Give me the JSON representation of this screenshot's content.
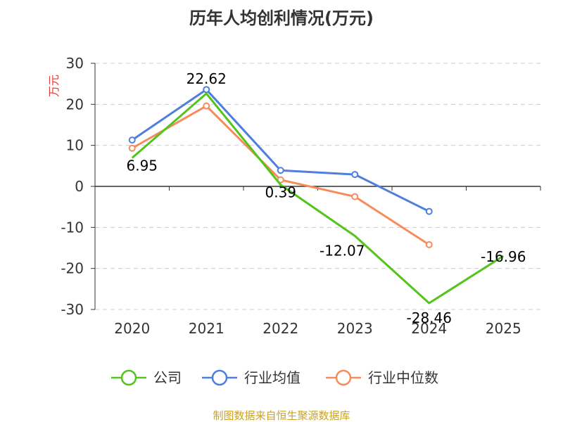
{
  "chart_data": {
    "type": "line",
    "title": "历年人均创利情况(万元)",
    "ylabel": "万元",
    "xlabel": "",
    "categories": [
      "2020",
      "2021",
      "2022",
      "2023",
      "2024",
      "2025"
    ],
    "ylim": [
      -30,
      30
    ],
    "yticks": [
      30,
      20,
      10,
      0,
      -10,
      -20,
      -30
    ],
    "grid": true,
    "legend_position": "bottom",
    "series": [
      {
        "name": "公司",
        "color": "#52c41a",
        "values": [
          6.95,
          22.62,
          0.39,
          -12.07,
          -28.46,
          -16.96
        ],
        "labels": [
          "6.95",
          "22.62",
          "0.39",
          "-12.07",
          "-28.46",
          "-16.96"
        ]
      },
      {
        "name": "行业均值",
        "color": "#4e7fde",
        "values": [
          11.3,
          23.6,
          3.9,
          2.9,
          -6.1,
          null
        ]
      },
      {
        "name": "行业中位数",
        "color": "#f68c5b",
        "values": [
          9.3,
          19.6,
          1.6,
          -2.5,
          -14.2,
          null
        ]
      }
    ]
  },
  "source": "制图数据来自恒生聚源数据库",
  "colors": {
    "title": "#333333",
    "ylabel": "#e03c3c",
    "source": "#c9a227",
    "grid": "#cccccc"
  }
}
